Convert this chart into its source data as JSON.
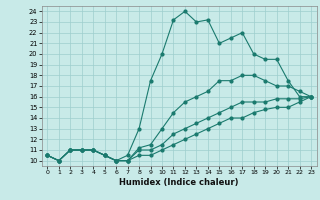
{
  "title": "",
  "xlabel": "Humidex (Indice chaleur)",
  "xlim": [
    -0.5,
    23.5
  ],
  "ylim": [
    9.5,
    24.5
  ],
  "xticks": [
    0,
    1,
    2,
    3,
    4,
    5,
    6,
    7,
    8,
    9,
    10,
    11,
    12,
    13,
    14,
    15,
    16,
    17,
    18,
    19,
    20,
    21,
    22,
    23
  ],
  "yticks": [
    10,
    11,
    12,
    13,
    14,
    15,
    16,
    17,
    18,
    19,
    20,
    21,
    22,
    23,
    24
  ],
  "line_color": "#1a7a6e",
  "bg_color": "#c8eae8",
  "grid_color": "#9ecece",
  "lines": [
    {
      "x": [
        0,
        1,
        2,
        3,
        4,
        5,
        6,
        7,
        8,
        9,
        10,
        11,
        12,
        13,
        14,
        15,
        16,
        17,
        18,
        19,
        20,
        21,
        22,
        23
      ],
      "y": [
        10.5,
        10.0,
        11.0,
        11.0,
        11.0,
        10.5,
        10.0,
        10.5,
        13.0,
        17.5,
        20.0,
        23.2,
        24.0,
        23.0,
        23.2,
        21.0,
        21.5,
        22.0,
        20.0,
        19.5,
        19.5,
        17.5,
        16.0,
        16.0
      ]
    },
    {
      "x": [
        0,
        1,
        2,
        3,
        4,
        5,
        6,
        7,
        8,
        9,
        10,
        11,
        12,
        13,
        14,
        15,
        16,
        17,
        18,
        19,
        20,
        21,
        22,
        23
      ],
      "y": [
        10.5,
        10.0,
        11.0,
        11.0,
        11.0,
        10.5,
        10.0,
        10.0,
        11.2,
        11.5,
        13.0,
        14.5,
        15.5,
        16.0,
        16.5,
        17.5,
        17.5,
        18.0,
        18.0,
        17.5,
        17.0,
        17.0,
        16.5,
        16.0
      ]
    },
    {
      "x": [
        0,
        1,
        2,
        3,
        4,
        5,
        6,
        7,
        8,
        9,
        10,
        11,
        12,
        13,
        14,
        15,
        16,
        17,
        18,
        19,
        20,
        21,
        22,
        23
      ],
      "y": [
        10.5,
        10.0,
        11.0,
        11.0,
        11.0,
        10.5,
        10.0,
        10.0,
        11.0,
        11.0,
        11.5,
        12.5,
        13.0,
        13.5,
        14.0,
        14.5,
        15.0,
        15.5,
        15.5,
        15.5,
        15.8,
        15.8,
        15.8,
        16.0
      ]
    },
    {
      "x": [
        0,
        1,
        2,
        3,
        4,
        5,
        6,
        7,
        8,
        9,
        10,
        11,
        12,
        13,
        14,
        15,
        16,
        17,
        18,
        19,
        20,
        21,
        22,
        23
      ],
      "y": [
        10.5,
        10.0,
        11.0,
        11.0,
        11.0,
        10.5,
        10.0,
        10.0,
        10.5,
        10.5,
        11.0,
        11.5,
        12.0,
        12.5,
        13.0,
        13.5,
        14.0,
        14.0,
        14.5,
        14.8,
        15.0,
        15.0,
        15.5,
        16.0
      ]
    }
  ]
}
